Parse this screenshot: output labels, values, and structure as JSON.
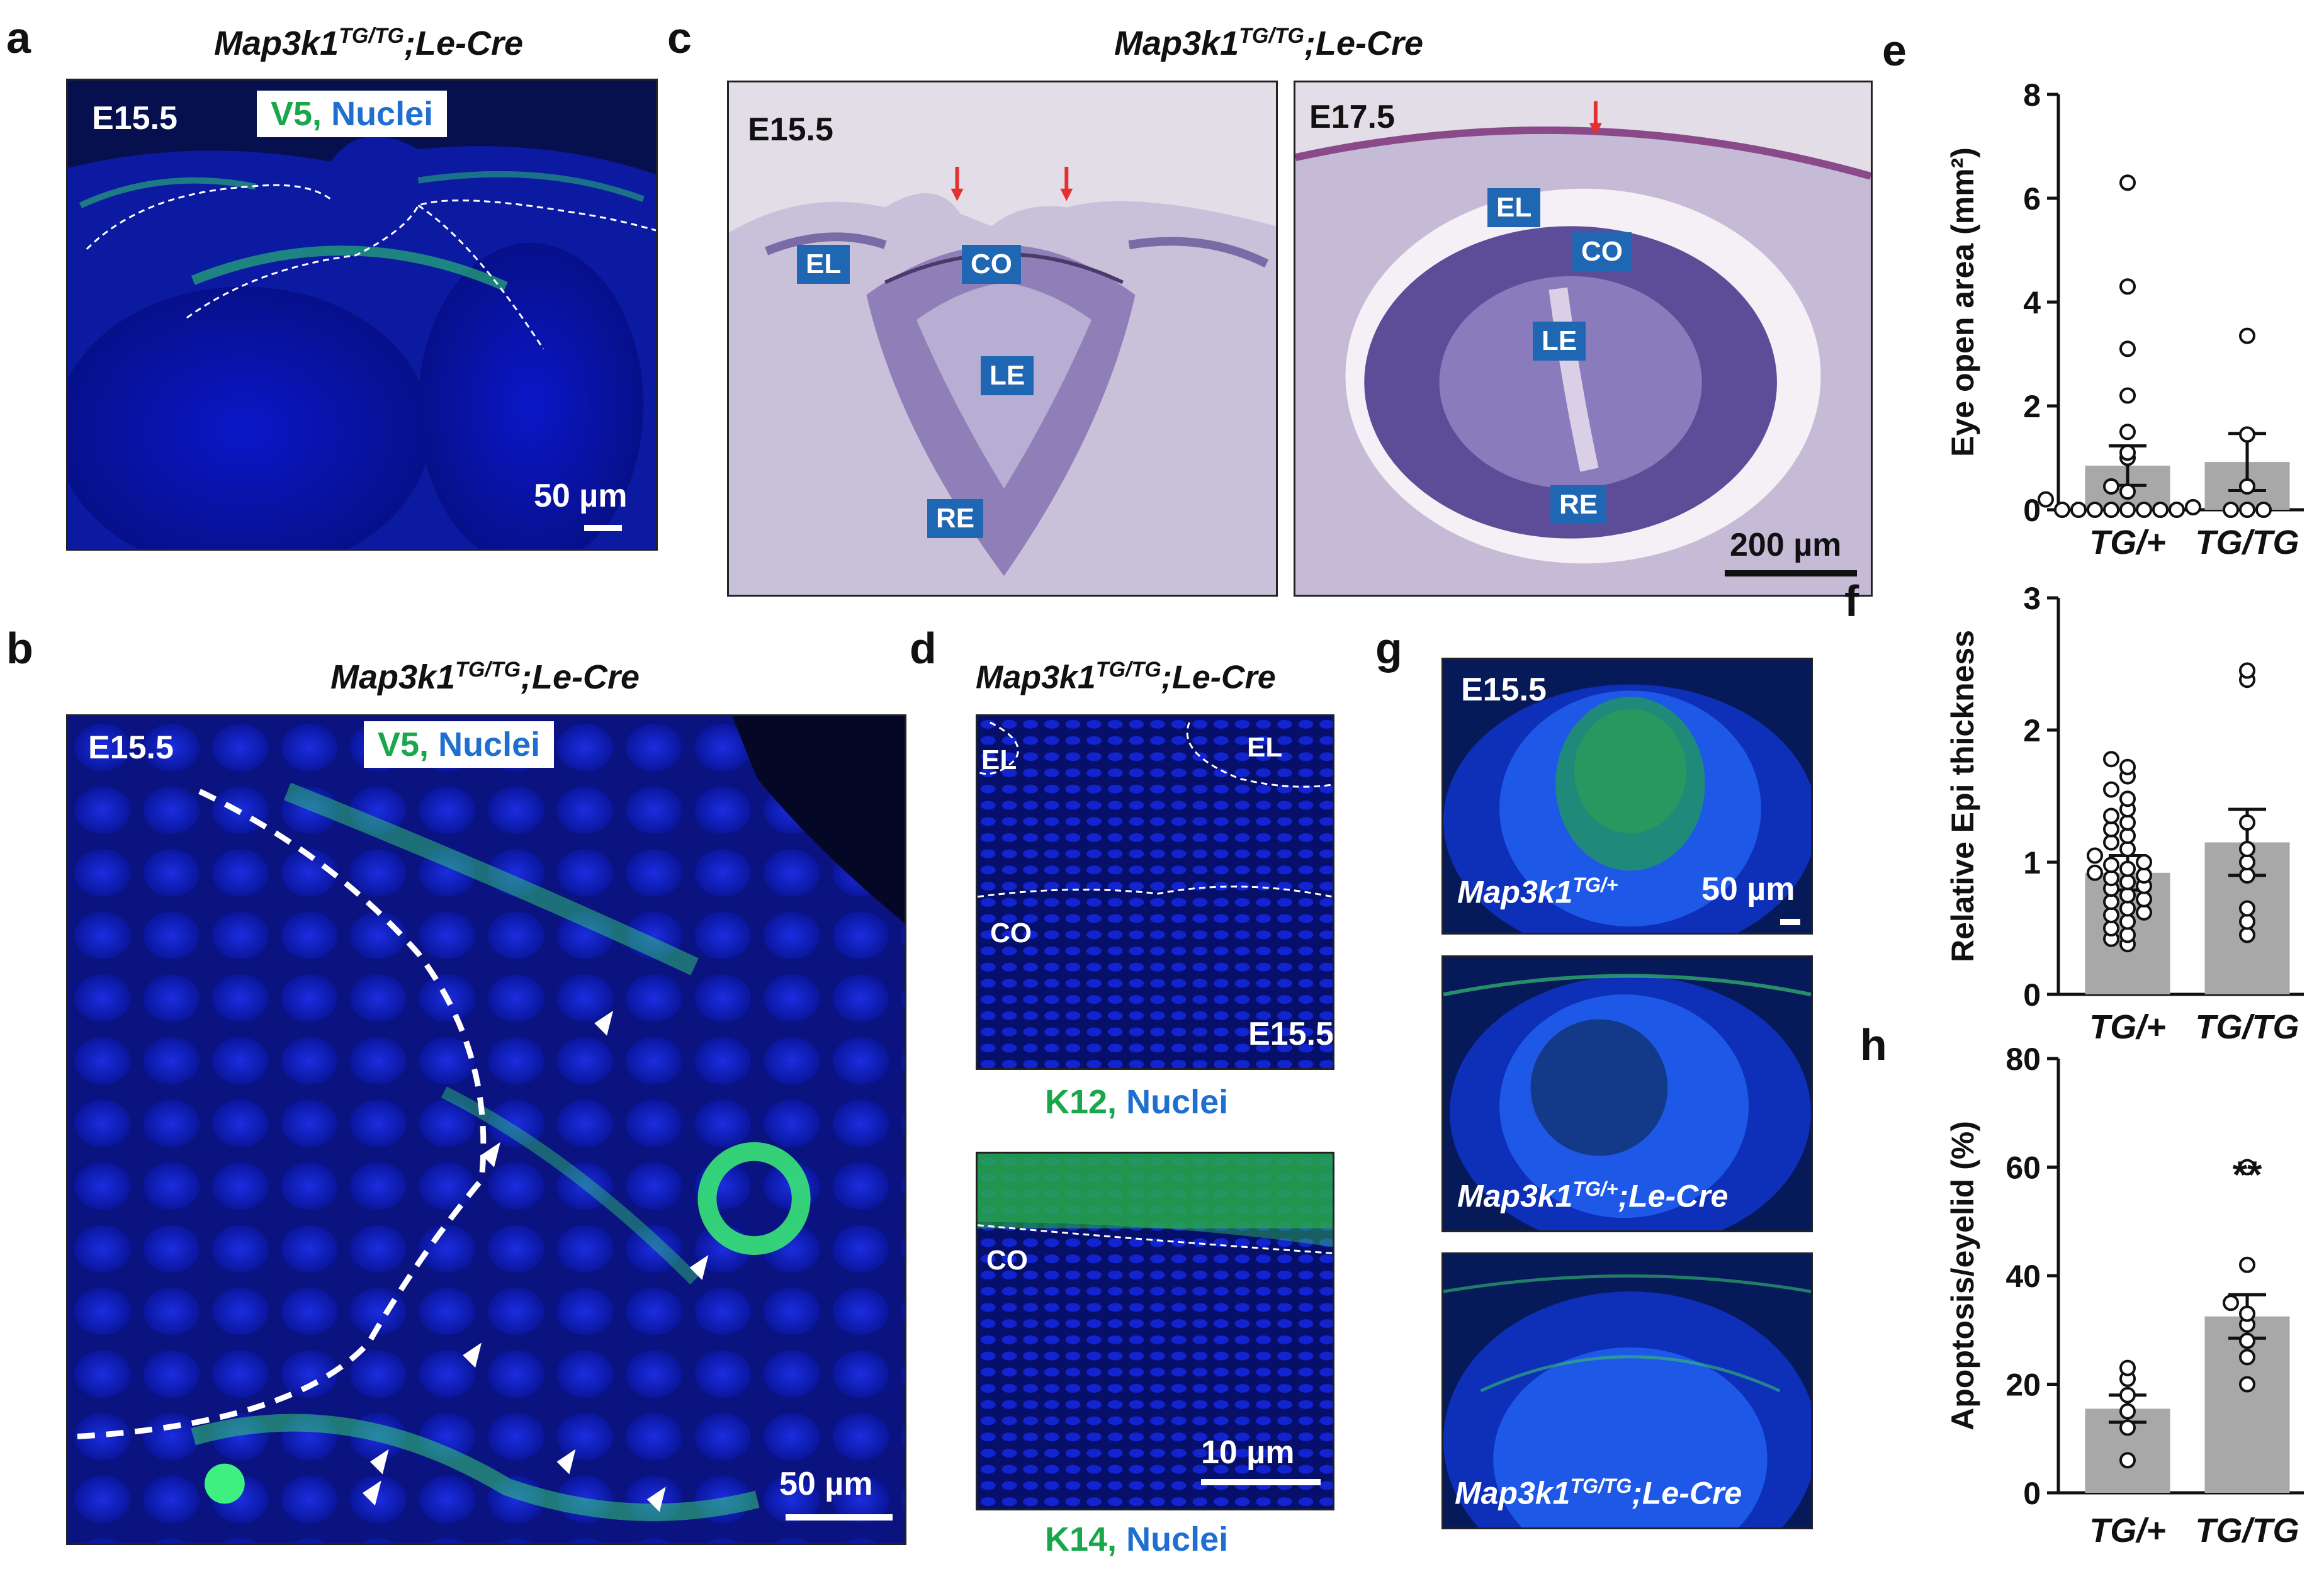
{
  "panels": {
    "a": {
      "letter": "a",
      "title_main": "Map3k1",
      "title_sup": "TG/TG",
      "title_rest": ";Le-Cre",
      "stage": "E15.5",
      "legend_green": "V5,",
      "legend_blue": "Nuclei",
      "scale": "50 µm"
    },
    "b": {
      "letter": "b",
      "title_main": "Map3k1",
      "title_sup": "TG/TG",
      "title_rest": ";Le-Cre",
      "stage": "E15.5",
      "legend_green": "V5,",
      "legend_blue": "Nuclei",
      "scale": "50 µm"
    },
    "c": {
      "letter": "c",
      "title_main": "Map3k1",
      "title_sup": "TG/TG",
      "title_rest": ";Le-Cre",
      "left": {
        "stage": "E15.5",
        "tags": [
          "EL",
          "CO",
          "LE",
          "RE"
        ]
      },
      "right": {
        "stage": "E17.5",
        "tags": [
          "EL",
          "CO",
          "LE",
          "RE"
        ],
        "scale": "200 µm"
      }
    },
    "d": {
      "letter": "d",
      "title_main": "Map3k1",
      "title_sup": "TG/TG",
      "title_rest": ";Le-Cre",
      "top": {
        "tags": [
          "EL",
          "EL",
          "CO"
        ],
        "stage": "E15.5",
        "caption_green": "K12,",
        "caption_blue": "Nuclei"
      },
      "bottom": {
        "tags": [
          "CO"
        ],
        "scale": "10 µm",
        "caption_green": "K14,",
        "caption_blue": "Nuclei"
      }
    },
    "g": {
      "letter": "g",
      "stage": "E15.5",
      "scale": "50 µm",
      "genotypes": [
        {
          "main": "Map3k1",
          "sup": "TG/+",
          "rest": ""
        },
        {
          "main": "Map3k1",
          "sup": "TG/+",
          "rest": ";Le-Cre"
        },
        {
          "main": "Map3k1",
          "sup": "TG/TG",
          "rest": ";Le-Cre"
        }
      ]
    }
  },
  "chart_data": [
    {
      "panel": "e",
      "type": "bar",
      "ylabel": "Eye open area (mm²)",
      "categories": [
        "TG/+",
        "TG/TG"
      ],
      "ylim": [
        0,
        8
      ],
      "yticks": [
        0,
        2,
        4,
        6,
        8
      ],
      "means": [
        0.85,
        0.92
      ],
      "sem": [
        0.38,
        0.55
      ],
      "points": [
        [
          0,
          0,
          0,
          0,
          0,
          0,
          0,
          0,
          0.05,
          0.2,
          0.35,
          0.45,
          1.0,
          1.1,
          1.5,
          2.2,
          3.1,
          4.3,
          6.3
        ],
        [
          0,
          0,
          0,
          0.45,
          1.45,
          3.35
        ]
      ],
      "significance": [
        "",
        ""
      ]
    },
    {
      "panel": "f",
      "type": "bar",
      "ylabel": "Relative Epi thickness",
      "categories": [
        "TG/+",
        "TG/TG"
      ],
      "ylim": [
        0,
        3
      ],
      "yticks": [
        0,
        1,
        2,
        3
      ],
      "means": [
        0.92,
        1.15
      ],
      "sem": [
        0.13,
        0.25
      ],
      "points": [
        [
          0.38,
          0.42,
          0.45,
          0.5,
          0.55,
          0.6,
          0.62,
          0.65,
          0.7,
          0.72,
          0.75,
          0.8,
          0.82,
          0.85,
          0.88,
          0.9,
          0.92,
          0.95,
          0.98,
          1.0,
          1.05,
          1.1,
          1.15,
          1.2,
          1.25,
          1.3,
          1.35,
          1.4,
          1.48,
          1.55,
          1.65,
          1.72,
          1.78
        ],
        [
          0.45,
          0.55,
          0.65,
          0.9,
          1.0,
          1.1,
          1.3,
          2.38,
          2.45
        ]
      ],
      "significance": [
        "",
        ""
      ]
    },
    {
      "panel": "h",
      "type": "bar",
      "ylabel": "Apoptosis/eyelid  (%)",
      "categories": [
        "TG/+",
        "TG/TG"
      ],
      "ylim": [
        0,
        80
      ],
      "yticks": [
        0,
        20,
        40,
        60,
        80
      ],
      "means": [
        15.5,
        32.5
      ],
      "sem": [
        2.5,
        4.0
      ],
      "points": [
        [
          6,
          12,
          15,
          18,
          21,
          23
        ],
        [
          20,
          25,
          28,
          31,
          33,
          35,
          42,
          60
        ]
      ],
      "significance": [
        "",
        "**"
      ]
    }
  ]
}
